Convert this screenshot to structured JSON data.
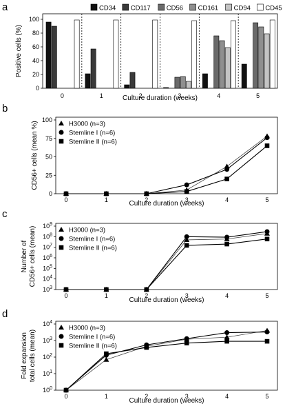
{
  "chart_data": [
    {
      "panel": "a",
      "type": "bar",
      "xlabel": "Culture duration (weeks)",
      "ylabel": "Positive cells (%)",
      "ylim": [
        0,
        100
      ],
      "yticks": [
        0,
        20,
        40,
        60,
        80,
        100
      ],
      "categories": [
        "0",
        "1",
        "2",
        "3",
        "4",
        "5"
      ],
      "legend_position": "top",
      "grid": false,
      "series": [
        {
          "name": "CD34",
          "color": "#111111",
          "values": [
            96,
            21,
            5,
            1,
            21,
            35
          ]
        },
        {
          "name": "CD117",
          "color": "#3a3a3a",
          "values": [
            90,
            57,
            23,
            null,
            null,
            null
          ]
        },
        {
          "name": "CD56",
          "color": "#6a6a6a",
          "values": [
            null,
            null,
            null,
            16,
            76,
            95
          ]
        },
        {
          "name": "CD161",
          "color": "#8f8f8f",
          "values": [
            null,
            null,
            null,
            17,
            69,
            89
          ]
        },
        {
          "name": "CD94",
          "color": "#c4c4c4",
          "values": [
            null,
            null,
            null,
            10,
            59,
            79
          ]
        },
        {
          "name": "CD45",
          "color": "#ffffff",
          "values": [
            99,
            99,
            99,
            98,
            98,
            99
          ]
        }
      ]
    },
    {
      "panel": "b",
      "type": "line",
      "xlabel": "Culture duration (weeks)",
      "ylabel": "CD56+ cells (mean %)",
      "x": [
        0,
        1,
        2,
        3,
        4,
        5
      ],
      "xlim": [
        0,
        5
      ],
      "ylim": [
        0,
        100
      ],
      "yticks": [
        0,
        25,
        50,
        75,
        100
      ],
      "legend_position": "top-left",
      "series": [
        {
          "name": "H3000 (n=3)",
          "marker": "triangle",
          "values": [
            0,
            0,
            0,
            5,
            37,
            78
          ]
        },
        {
          "name": "Stemline I (n=6)",
          "marker": "circle",
          "values": [
            0,
            0,
            0,
            12,
            33,
            76
          ]
        },
        {
          "name": "Stemline II (n=6)",
          "marker": "square",
          "values": [
            0,
            0,
            0,
            3,
            20,
            65
          ]
        }
      ]
    },
    {
      "panel": "c",
      "type": "line",
      "xlabel": "Culture duration (weeks)",
      "ylabel": "Number of CD56+ cells (mean)",
      "yscale": "log",
      "x": [
        0,
        1,
        2,
        3,
        4,
        5
      ],
      "xlim": [
        0,
        5
      ],
      "ylim": [
        1000,
        1000000000
      ],
      "yticks": [
        "10^3",
        "10^4",
        "10^5",
        "10^6",
        "10^7",
        "10^8",
        "10^9"
      ],
      "legend_position": "top-left",
      "series": [
        {
          "name": "H3000 (n=3)",
          "marker": "triangle",
          "values": [
            1000,
            1000,
            1000,
            50000000,
            60000000,
            200000000
          ]
        },
        {
          "name": "Stemline I (n=6)",
          "marker": "circle",
          "values": [
            1000,
            1000,
            1000,
            100000000,
            90000000,
            300000000
          ]
        },
        {
          "name": "Stemline II (n=6)",
          "marker": "square",
          "values": [
            1000,
            1000,
            1000,
            15000000,
            20000000,
            60000000
          ]
        }
      ]
    },
    {
      "panel": "d",
      "type": "line",
      "xlabel": "Culture duration (weeks)",
      "ylabel": "Fold expansion total cells (mean)",
      "yscale": "log",
      "x": [
        0,
        1,
        2,
        3,
        4,
        5
      ],
      "xlim": [
        0,
        5
      ],
      "ylim": [
        1,
        10000
      ],
      "yticks": [
        "10^0",
        "10^1",
        "10^2",
        "10^3",
        "10^4"
      ],
      "legend_position": "top-left",
      "series": [
        {
          "name": "H3000 (n=3)",
          "marker": "triangle",
          "values": [
            1,
            70,
            450,
            1200,
            1600,
            4000
          ]
        },
        {
          "name": "Stemline I (n=6)",
          "marker": "circle",
          "values": [
            1,
            130,
            550,
            1300,
            3000,
            3300
          ]
        },
        {
          "name": "Stemline II (n=6)",
          "marker": "square",
          "values": [
            1,
            160,
            380,
            700,
            900,
            900
          ]
        }
      ]
    }
  ]
}
